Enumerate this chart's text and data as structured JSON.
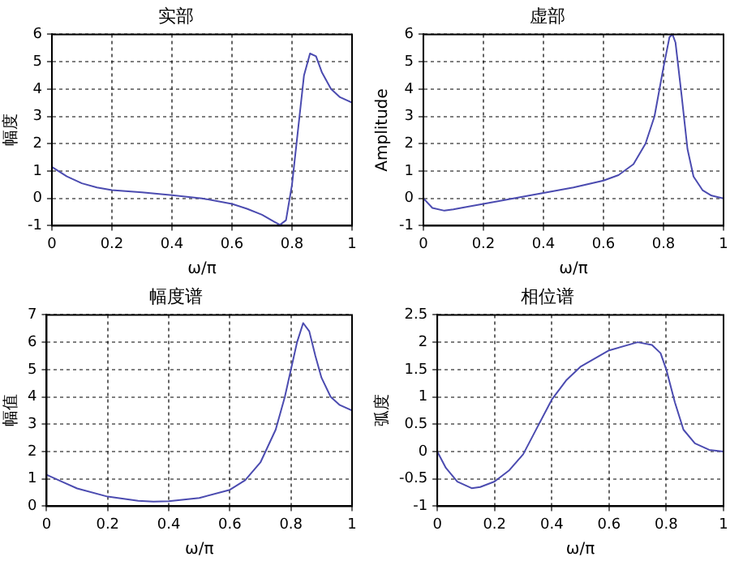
{
  "chart_data": [
    {
      "type": "line",
      "title": "实部",
      "xlabel": "ω/π",
      "ylabel": "幅度",
      "x": [
        0,
        0.05,
        0.1,
        0.15,
        0.2,
        0.3,
        0.4,
        0.5,
        0.6,
        0.65,
        0.7,
        0.74,
        0.76,
        0.78,
        0.8,
        0.82,
        0.84,
        0.86,
        0.88,
        0.9,
        0.93,
        0.96,
        1.0
      ],
      "series": [
        {
          "color": "#4b4bb0",
          "values": [
            1.15,
            0.8,
            0.55,
            0.4,
            0.3,
            0.22,
            0.12,
            0.0,
            -0.2,
            -0.38,
            -0.6,
            -0.85,
            -0.97,
            -0.8,
            0.5,
            2.5,
            4.5,
            5.3,
            5.2,
            4.6,
            4.0,
            3.7,
            3.5
          ]
        }
      ],
      "xlim": [
        0,
        1
      ],
      "xticks": [
        0,
        0.2,
        0.4,
        0.6,
        0.8,
        1
      ],
      "ylim": [
        -1,
        6
      ],
      "yticks": [
        -1,
        0,
        1,
        2,
        3,
        4,
        5,
        6
      ],
      "grid": true,
      "legend": false,
      "marker": "none",
      "line_style": "solid"
    },
    {
      "type": "line",
      "title": "虚部",
      "xlabel": "ω/π",
      "ylabel": "Amplitude",
      "x": [
        0,
        0.03,
        0.07,
        0.1,
        0.2,
        0.3,
        0.4,
        0.5,
        0.6,
        0.65,
        0.7,
        0.74,
        0.77,
        0.8,
        0.82,
        0.83,
        0.84,
        0.86,
        0.88,
        0.9,
        0.93,
        0.96,
        1.0
      ],
      "series": [
        {
          "color": "#4b4bb0",
          "values": [
            0,
            -0.35,
            -0.45,
            -0.4,
            -0.2,
            0,
            0.2,
            0.4,
            0.65,
            0.85,
            1.25,
            2.0,
            3.0,
            4.8,
            5.9,
            6.0,
            5.7,
            3.8,
            1.8,
            0.8,
            0.3,
            0.1,
            0
          ]
        }
      ],
      "xlim": [
        0,
        1
      ],
      "xticks": [
        0,
        0.2,
        0.4,
        0.6,
        0.8,
        1
      ],
      "ylim": [
        -1,
        6
      ],
      "yticks": [
        -1,
        0,
        1,
        2,
        3,
        4,
        5,
        6
      ],
      "grid": true,
      "legend": false,
      "marker": "none",
      "line_style": "solid"
    },
    {
      "type": "line",
      "title": "幅度谱",
      "xlabel": "ω/π",
      "ylabel": "幅值",
      "x": [
        0,
        0.05,
        0.1,
        0.2,
        0.3,
        0.35,
        0.4,
        0.5,
        0.6,
        0.65,
        0.7,
        0.75,
        0.78,
        0.8,
        0.82,
        0.84,
        0.86,
        0.88,
        0.9,
        0.93,
        0.96,
        1.0
      ],
      "series": [
        {
          "color": "#4b4bb0",
          "values": [
            1.15,
            0.9,
            0.65,
            0.35,
            0.2,
            0.17,
            0.18,
            0.3,
            0.6,
            0.95,
            1.6,
            2.8,
            4.0,
            5.0,
            6.0,
            6.7,
            6.4,
            5.5,
            4.7,
            4.0,
            3.7,
            3.5
          ]
        }
      ],
      "xlim": [
        0,
        1
      ],
      "xticks": [
        0,
        0.2,
        0.4,
        0.6,
        0.8,
        1
      ],
      "ylim": [
        0,
        7
      ],
      "yticks": [
        0,
        1,
        2,
        3,
        4,
        5,
        6,
        7
      ],
      "grid": true,
      "legend": false,
      "marker": "none",
      "line_style": "solid"
    },
    {
      "type": "line",
      "title": "相位谱",
      "xlabel": "ω/π",
      "ylabel": "弧度",
      "x": [
        0,
        0.03,
        0.07,
        0.12,
        0.15,
        0.2,
        0.25,
        0.3,
        0.35,
        0.4,
        0.45,
        0.5,
        0.6,
        0.7,
        0.75,
        0.78,
        0.8,
        0.83,
        0.86,
        0.9,
        0.95,
        1.0
      ],
      "series": [
        {
          "color": "#4b4bb0",
          "values": [
            0,
            -0.3,
            -0.55,
            -0.67,
            -0.65,
            -0.55,
            -0.35,
            -0.05,
            0.45,
            0.95,
            1.3,
            1.55,
            1.85,
            2.0,
            1.95,
            1.8,
            1.5,
            0.9,
            0.4,
            0.15,
            0.03,
            0
          ]
        }
      ],
      "xlim": [
        0,
        1
      ],
      "xticks": [
        0,
        0.2,
        0.4,
        0.6,
        0.8,
        1
      ],
      "ylim": [
        -1,
        2.5
      ],
      "yticks": [
        -1,
        -0.5,
        0,
        0.5,
        1,
        1.5,
        2,
        2.5
      ],
      "grid": true,
      "legend": false,
      "marker": "none",
      "line_style": "solid"
    }
  ]
}
